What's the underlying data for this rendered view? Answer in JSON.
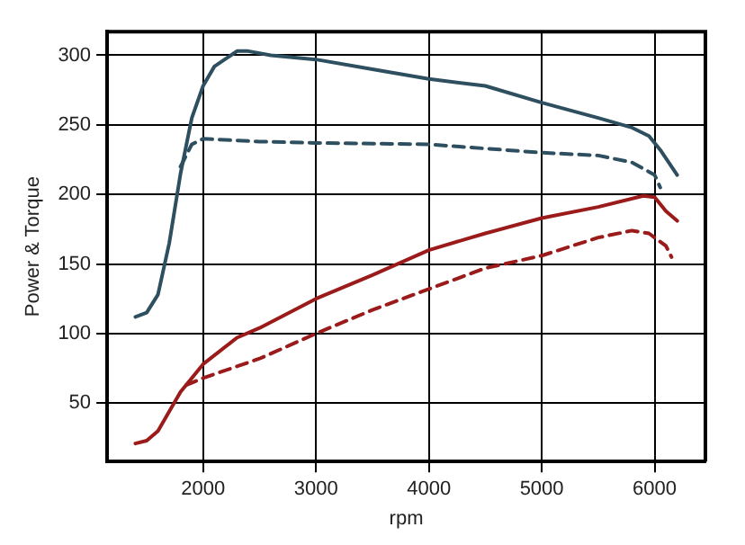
{
  "chart_data": {
    "type": "line",
    "xlabel": "rpm",
    "ylabel": "Power & Torque",
    "xlim": [
      1150,
      6450
    ],
    "xticks": [
      2000,
      3000,
      4000,
      5000,
      6000
    ],
    "ylim": [
      8,
      317
    ],
    "yticks": [
      50,
      100,
      150,
      200,
      250,
      300
    ],
    "grid": true,
    "legend": false,
    "marker": "none",
    "series": [
      {
        "color": "#2e4f5f",
        "line_style": "solid",
        "x": [
          1400,
          1500,
          1600,
          1700,
          1800,
          1900,
          2000,
          2100,
          2300,
          2400,
          2600,
          3000,
          3500,
          4000,
          4500,
          5000,
          5500,
          5800,
          5950,
          6050,
          6200
        ],
        "values": [
          112,
          115,
          128,
          165,
          215,
          255,
          278,
          292,
          303,
          303,
          300,
          297,
          290,
          283,
          278,
          266,
          255,
          248,
          242,
          232,
          214
        ]
      },
      {
        "color": "#2e4f5f",
        "line_style": "dashed",
        "x": [
          1800,
          1900,
          2000,
          2500,
          3000,
          4000,
          4500,
          5000,
          5500,
          5800,
          6000,
          6050
        ],
        "values": [
          220,
          236,
          240,
          238,
          237,
          236,
          233,
          230,
          228,
          223,
          214,
          205
        ]
      },
      {
        "color": "#9b1b1b",
        "line_style": "solid",
        "x": [
          1400,
          1500,
          1600,
          1700,
          1800,
          2000,
          2300,
          2500,
          3000,
          3500,
          4000,
          4500,
          5000,
          5500,
          5900,
          6000,
          6100,
          6200
        ],
        "values": [
          21,
          23,
          30,
          44,
          58,
          78,
          97,
          104,
          125,
          142,
          160,
          172,
          183,
          191,
          199,
          198,
          188,
          181
        ]
      },
      {
        "color": "#9b1b1b",
        "line_style": "dashed",
        "x": [
          1850,
          2000,
          2500,
          3000,
          3500,
          4000,
          4500,
          5000,
          5500,
          5800,
          5950,
          6100,
          6150
        ],
        "values": [
          63,
          68,
          82,
          100,
          117,
          132,
          147,
          156,
          169,
          174,
          172,
          163,
          155
        ]
      }
    ]
  }
}
